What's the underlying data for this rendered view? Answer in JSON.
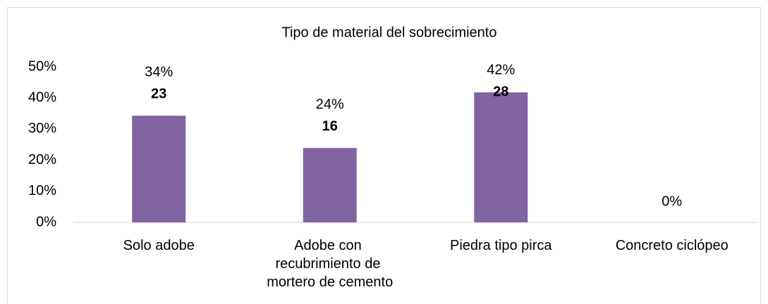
{
  "chart_data": {
    "type": "bar",
    "title": "Tipo de material del sobrecimiento",
    "categories": [
      "Solo adobe",
      "Adobe con recubrimiento de mortero de cemento",
      "Piedra tipo pirca",
      "Concreto ciclópeo"
    ],
    "values": [
      34.3,
      23.9,
      41.8,
      0
    ],
    "value_labels": [
      "34%",
      "24%",
      "42%",
      "0%"
    ],
    "counts": [
      23,
      16,
      28,
      null
    ],
    "color": "#8064a2",
    "ylim": [
      0,
      50
    ],
    "yticks": [
      {
        "value": 0,
        "label": "0%"
      },
      {
        "value": 10,
        "label": "10%"
      },
      {
        "value": 20,
        "label": "20%"
      },
      {
        "value": 30,
        "label": "30%"
      },
      {
        "value": 40,
        "label": "40%"
      },
      {
        "value": 50,
        "label": "50%"
      }
    ],
    "grid": false
  }
}
